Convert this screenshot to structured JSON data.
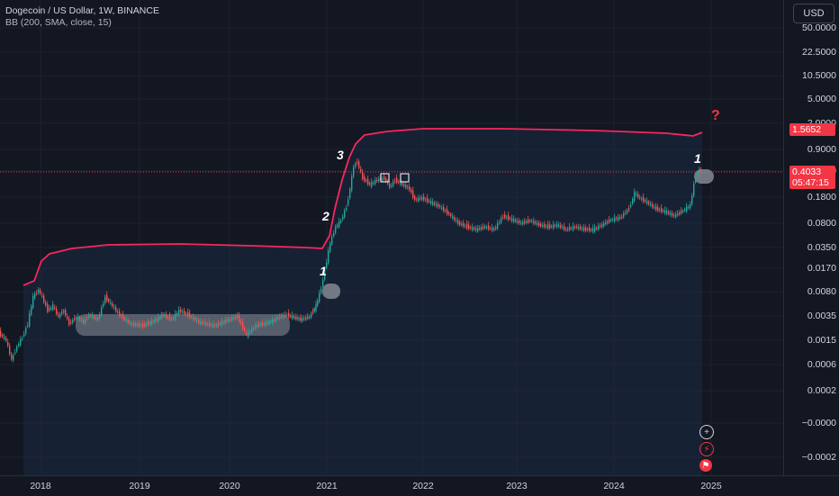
{
  "legend": {
    "title": "Dogecoin / US Dollar, 1W, BINANCE",
    "indicator": "BB (200, SMA, close, 15)"
  },
  "currency": "USD",
  "price_scale": [
    "50.0000",
    "22.5000",
    "10.5000",
    "5.0000",
    "2.0000",
    "0.9000",
    "0.4000",
    "0.1800",
    "0.0800",
    "0.0350",
    "0.0170",
    "0.0080",
    "0.0035",
    "0.0015",
    "0.0006",
    "0.0002",
    "−0.0000",
    "−0.0002"
  ],
  "time_scale": [
    "2018",
    "2019",
    "2020",
    "2021",
    "2022",
    "2023",
    "2024",
    "2025"
  ],
  "labels": {
    "band_value": "1.5652",
    "current_price": "0.4033",
    "countdown": "05:47:15"
  },
  "annotations": {
    "one_a": "1",
    "two": "2",
    "three": "3",
    "one_b": "1",
    "question": "?"
  },
  "colors": {
    "background": "#131722",
    "band": "#f7275e",
    "up": "#26a69a",
    "down": "#ef5350",
    "highlight": "#f23645"
  },
  "icons": [
    "plus-circle-icon",
    "lightning-icon",
    "flag-icon"
  ],
  "chart_data": {
    "type": "candlestick",
    "series": [
      {
        "name": "Dogecoin / US Dollar",
        "values": [
          0.001,
          0.0025,
          0.008,
          0.004,
          0.003,
          0.0025,
          0.003,
          0.003,
          0.0025,
          0.003,
          0.0035,
          0.0025,
          0.0025,
          0.005,
          0.03,
          0.08,
          0.5,
          0.3,
          0.3,
          0.2,
          0.15,
          0.07,
          0.07,
          0.06,
          0.09,
          0.08,
          0.07,
          0.065,
          0.06,
          0.07,
          0.1,
          0.18,
          0.13,
          0.1,
          0.12,
          0.4033
        ]
      },
      {
        "name": "BB upper",
        "values": [
          0.014,
          0.035,
          0.037,
          0.036,
          0.035,
          0.034,
          0.033,
          0.031,
          0.03,
          0.029,
          0.028,
          0.03,
          0.1,
          0.6,
          1.5,
          1.9,
          1.95,
          1.9,
          1.85,
          1.75,
          1.6,
          1.45,
          1.5652
        ]
      }
    ],
    "x_range": [
      "2017-08",
      "2024-12"
    ],
    "y_scale": "log",
    "ylim": [
      -0.0002,
      50
    ]
  }
}
